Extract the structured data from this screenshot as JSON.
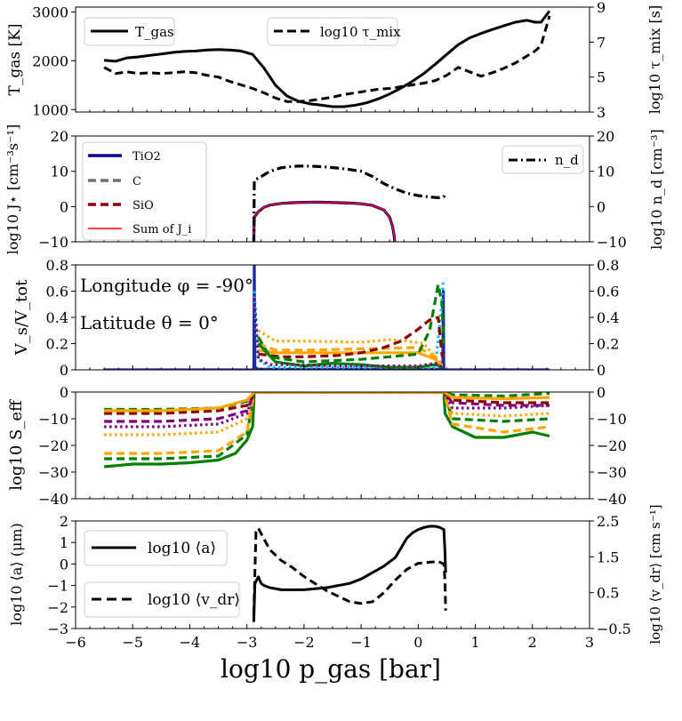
{
  "figure": {
    "shared_x": {
      "label": "log10 p_gas [bar]",
      "min": -6,
      "max": 3,
      "ticks": [
        -6,
        -5,
        -4,
        -3,
        -2,
        -1,
        0,
        1,
        2,
        3
      ]
    },
    "annotations": {
      "longitude": "Longitude φ = -90°",
      "latitude": "Latitude θ = 0°"
    }
  },
  "chart_data": [
    {
      "id": "temperature",
      "type": "line",
      "ylabel": "T_gas [K]",
      "ylim": [
        950,
        3100
      ],
      "yticks": [
        1000,
        2000,
        3000
      ],
      "y2label": "log10 τ_mix [s]",
      "y2lim": [
        3,
        9
      ],
      "y2ticks": [
        3,
        5,
        7,
        9
      ],
      "legend": [
        {
          "label": "T_gas",
          "style": "solid"
        },
        {
          "label": "log10 τ_mix",
          "style": "dashed"
        }
      ],
      "series": [
        {
          "name": "T_gas",
          "axis": "left",
          "style": "solid",
          "color": "#000000",
          "x": [
            -5.5,
            -5.3,
            -5.1,
            -4.9,
            -4.7,
            -4.5,
            -4.3,
            -4.1,
            -3.9,
            -3.7,
            -3.5,
            -3.3,
            -3.1,
            -2.9,
            -2.7,
            -2.5,
            -2.3,
            -2.1,
            -1.9,
            -1.7,
            -1.5,
            -1.3,
            -1.1,
            -0.9,
            -0.7,
            -0.5,
            -0.3,
            -0.1,
            0.1,
            0.3,
            0.5,
            0.7,
            0.9,
            1.1,
            1.3,
            1.5,
            1.7,
            1.9,
            2.05,
            2.15,
            2.3
          ],
          "y": [
            2010,
            1990,
            2060,
            2080,
            2110,
            2140,
            2170,
            2190,
            2200,
            2220,
            2230,
            2220,
            2200,
            2130,
            1850,
            1500,
            1280,
            1170,
            1120,
            1090,
            1060,
            1060,
            1090,
            1140,
            1220,
            1320,
            1440,
            1580,
            1740,
            1930,
            2130,
            2330,
            2470,
            2560,
            2640,
            2720,
            2790,
            2830,
            2790,
            2790,
            3020
          ]
        },
        {
          "name": "log10 τ_mix",
          "axis": "right",
          "style": "dashed",
          "color": "#000000",
          "x": [
            -5.5,
            -5.3,
            -5.1,
            -4.9,
            -4.7,
            -4.5,
            -4.3,
            -4.1,
            -3.9,
            -3.7,
            -3.5,
            -3.3,
            -3.1,
            -2.9,
            -2.7,
            -2.5,
            -2.3,
            -2.1,
            -1.9,
            -1.7,
            -1.5,
            -1.3,
            -1.1,
            -0.9,
            -0.7,
            -0.5,
            -0.3,
            -0.1,
            0.1,
            0.3,
            0.5,
            0.7,
            0.9,
            1.1,
            1.3,
            1.5,
            1.7,
            1.9,
            2.05,
            2.15,
            2.3
          ],
          "y": [
            5.55,
            5.2,
            5.3,
            5.2,
            5.25,
            5.2,
            5.25,
            5.3,
            5.25,
            5.1,
            5.0,
            4.75,
            4.55,
            4.35,
            4.1,
            3.8,
            3.6,
            3.6,
            3.65,
            3.75,
            3.85,
            4.0,
            4.1,
            4.2,
            4.3,
            4.35,
            4.45,
            4.55,
            4.65,
            4.8,
            5.1,
            5.55,
            5.3,
            5.05,
            5.25,
            5.5,
            5.8,
            6.2,
            6.5,
            6.8,
            8.5
          ]
        }
      ]
    },
    {
      "id": "nucleation",
      "type": "line",
      "ylabel": "log10 J⋆ [cm⁻³s⁻¹]",
      "ylim": [
        -10,
        20
      ],
      "yticks": [
        -10,
        0,
        10,
        20
      ],
      "y2label": "log10 n_d [cm⁻³]",
      "y2lim": [
        -10,
        20
      ],
      "y2ticks": [
        -10,
        0,
        10,
        20
      ],
      "legend": [
        {
          "label": "TiO2",
          "color": "#00008b"
        },
        {
          "label": "C",
          "color": "#707070"
        },
        {
          "label": "SiO",
          "color": "#8b0000"
        },
        {
          "label": "Sum of J_i",
          "color": "#ff0000"
        },
        {
          "label": "n_d",
          "style": "dashdot"
        }
      ],
      "series": [
        {
          "name": "TiO2",
          "color": "#00008b",
          "style": "solid",
          "x": [
            -2.88,
            -2.87,
            -2.8,
            -2.7,
            -2.6,
            -2.4,
            -2.2,
            -2.0,
            -1.8,
            -1.6,
            -1.4,
            -1.2,
            -1.0,
            -0.8,
            -0.6,
            -0.5,
            -0.45,
            -0.42,
            -0.41
          ],
          "y": [
            -10.5,
            -3.0,
            -1.5,
            -0.2,
            0.4,
            0.9,
            1.1,
            1.2,
            1.25,
            1.2,
            1.1,
            1.0,
            0.8,
            0.3,
            -1.0,
            -3.0,
            -5.5,
            -8.5,
            -10.5
          ]
        },
        {
          "name": "Sum of J_i",
          "color": "#ff0000",
          "style": "solid",
          "x": [
            -2.88,
            -2.87,
            -2.8,
            -2.7,
            -2.6,
            -2.4,
            -2.2,
            -2.0,
            -1.8,
            -1.6,
            -1.4,
            -1.2,
            -1.0,
            -0.8,
            -0.6,
            -0.5,
            -0.45,
            -0.42,
            -0.41
          ],
          "y": [
            -10.5,
            -3.0,
            -1.5,
            -0.2,
            0.4,
            0.9,
            1.1,
            1.2,
            1.25,
            1.2,
            1.1,
            1.0,
            0.8,
            0.3,
            -1.0,
            -3.0,
            -5.5,
            -8.5,
            -10.5
          ]
        },
        {
          "name": "n_d",
          "color": "#000000",
          "style": "dashdot",
          "x": [
            -2.88,
            -2.87,
            -2.75,
            -2.6,
            -2.4,
            -2.2,
            -2.0,
            -1.8,
            -1.6,
            -1.4,
            -1.2,
            -1.0,
            -0.8,
            -0.6,
            -0.4,
            -0.2,
            0.0,
            0.2,
            0.35,
            0.45,
            0.46
          ],
          "y": [
            -10.5,
            7.5,
            8.5,
            10.0,
            11.0,
            11.4,
            11.5,
            11.4,
            11.2,
            10.9,
            10.5,
            10.0,
            8.5,
            6.5,
            5.0,
            3.8,
            3.1,
            2.7,
            2.5,
            2.8,
            3.5
          ]
        }
      ]
    },
    {
      "id": "volume_fractions",
      "type": "line",
      "ylabel": "V_s/V_tot",
      "ylim": [
        0,
        0.8
      ],
      "yticks": [
        0.0,
        0.2,
        0.4,
        0.6,
        0.8
      ],
      "y2ticks": [
        0.0,
        0.2,
        0.4,
        0.6,
        0.8
      ],
      "series": [
        {
          "name": "TiO2",
          "color": "#1f2b9e",
          "style": "solid",
          "x": [
            -5.5,
            -2.88,
            -2.87,
            -2.86,
            -2.8,
            0.43,
            0.44,
            0.45,
            2.3
          ],
          "y": [
            0,
            0,
            0.82,
            0.02,
            0.005,
            0.005,
            0.6,
            0,
            0
          ]
        },
        {
          "name": "cyan species",
          "color": "#00bfff",
          "style": "dotted",
          "x": [
            -2.87,
            -2.8,
            -2.6,
            0.3,
            0.4,
            0.44
          ],
          "y": [
            0.6,
            0.08,
            0.02,
            0.02,
            0.45,
            0.68
          ]
        },
        {
          "name": "gold solid",
          "color": "#ffa500",
          "style": "solid",
          "x": [
            -2.8,
            -2.5,
            -2.0,
            -1.0,
            0.0,
            0.3,
            0.42
          ],
          "y": [
            0.15,
            0.13,
            0.13,
            0.13,
            0.13,
            0.08,
            0.02
          ]
        },
        {
          "name": "gold dotted",
          "color": "#ffa500",
          "style": "dotted",
          "x": [
            -2.8,
            -2.5,
            -2.0,
            -1.0,
            -0.5,
            -0.2,
            0.1,
            0.4
          ],
          "y": [
            0.3,
            0.22,
            0.22,
            0.21,
            0.23,
            0.22,
            0.2,
            0.05
          ]
        },
        {
          "name": "gold dashed",
          "color": "#ffa500",
          "style": "dashed",
          "x": [
            -2.8,
            -2.5,
            -2.0,
            -1.0,
            0.0,
            0.3,
            0.42
          ],
          "y": [
            0.2,
            0.15,
            0.15,
            0.16,
            0.17,
            0.1,
            0.03
          ]
        },
        {
          "name": "SiO",
          "color": "#8b0000",
          "style": "dashed",
          "x": [
            -2.8,
            -2.4,
            -2.0,
            -1.4,
            -1.0,
            -0.6,
            -0.3,
            0.0,
            0.2,
            0.35,
            0.42
          ],
          "y": [
            0.12,
            0.1,
            0.1,
            0.11,
            0.13,
            0.17,
            0.22,
            0.31,
            0.38,
            0.4,
            0.1
          ]
        },
        {
          "name": "green dashed",
          "color": "#007f00",
          "style": "dashed",
          "x": [
            -2.8,
            -2.6,
            -2.0,
            -1.0,
            -0.5,
            0.0,
            0.2,
            0.35,
            0.42,
            0.44
          ],
          "y": [
            0.25,
            0.1,
            0.06,
            0.08,
            0.1,
            0.12,
            0.3,
            0.65,
            0.5,
            0.2
          ]
        },
        {
          "name": "green solid",
          "color": "#007f00",
          "style": "solid",
          "x": [
            -2.8,
            -2.5,
            -2.0,
            -1.5,
            -1.0,
            -0.5,
            0.0,
            0.3,
            0.42
          ],
          "y": [
            0.2,
            0.06,
            0.03,
            0.05,
            0.04,
            0.02,
            0.02,
            0.04,
            0.02
          ]
        },
        {
          "name": "purple dotted",
          "color": "#800080",
          "style": "dotted",
          "x": [
            -2.87,
            -2.8,
            -2.6,
            -2.2,
            -1.5,
            -1.0,
            0.0,
            0.3,
            0.42
          ],
          "y": [
            0.55,
            0.08,
            0.04,
            0.04,
            0.03,
            0.03,
            0.03,
            0.05,
            0.02
          ]
        }
      ]
    },
    {
      "id": "supersaturation",
      "type": "line",
      "ylabel": "log10 S_eff",
      "ylim": [
        -40,
        0
      ],
      "yticks": [
        -40,
        -30,
        -20,
        -10,
        0
      ],
      "y2ticks": [
        -40,
        -30,
        -20,
        -10,
        0
      ],
      "series": [
        {
          "name": "green solid",
          "color": "#007f00",
          "style": "solid",
          "x": [
            -5.5,
            -5.0,
            -4.5,
            -4.0,
            -3.5,
            -3.2,
            -3.0,
            -2.9,
            -2.87,
            0.45,
            0.47,
            0.6,
            1.0,
            1.5,
            2.0,
            2.3
          ],
          "y": [
            -28,
            -27,
            -27,
            -26.5,
            -25.5,
            -23,
            -18,
            -13,
            0,
            0,
            -8,
            -13,
            -17,
            -17,
            -15,
            -16.5
          ]
        },
        {
          "name": "green dashed",
          "color": "#007f00",
          "style": "dashed",
          "x": [
            -5.5,
            -4.5,
            -3.5,
            -3.0,
            -2.87,
            0.45,
            0.6,
            1.5,
            2.3
          ],
          "y": [
            -25,
            -25,
            -24,
            -16,
            0,
            0,
            -10,
            -11,
            -10
          ]
        },
        {
          "name": "gold dashed",
          "color": "#ffa500",
          "style": "dashed",
          "x": [
            -5.5,
            -4.5,
            -3.5,
            -3.0,
            -2.87,
            0.45,
            0.6,
            1.5,
            2.3
          ],
          "y": [
            -23,
            -23,
            -22,
            -15,
            0,
            0,
            -12,
            -15,
            -13
          ]
        },
        {
          "name": "gold dotted",
          "color": "#ffa500",
          "style": "dotted",
          "x": [
            -5.5,
            -4.5,
            -3.5,
            -3.0,
            -2.87,
            0.45,
            0.6,
            1.5,
            2.3
          ],
          "y": [
            -16,
            -16,
            -15,
            -10,
            0,
            0,
            -8,
            -9,
            -8
          ]
        },
        {
          "name": "purple dotted",
          "color": "#800080",
          "style": "dotted",
          "x": [
            -5.5,
            -4.5,
            -3.5,
            -3.0,
            -2.87,
            0.45,
            0.6,
            1.5,
            2.3
          ],
          "y": [
            -13,
            -13,
            -12,
            -8,
            0,
            0,
            -6,
            -6,
            -5
          ]
        },
        {
          "name": "purple dashed",
          "color": "#800080",
          "style": "dashed",
          "x": [
            -5.5,
            -4.5,
            -3.5,
            -3.0,
            -2.87,
            0.45,
            0.6,
            1.5,
            2.3
          ],
          "y": [
            -11,
            -11,
            -10,
            -7,
            0,
            0,
            -4,
            -5,
            -5
          ]
        },
        {
          "name": "SiO",
          "color": "#8b0000",
          "style": "dashed",
          "x": [
            -5.5,
            -4.5,
            -3.5,
            -3.0,
            -2.87,
            0.45,
            0.6,
            1.5,
            2.3
          ],
          "y": [
            -8,
            -8,
            -7,
            -5,
            0,
            0,
            -3,
            -4,
            -4
          ]
        },
        {
          "name": "green dashed 2",
          "color": "#007f00",
          "style": "dashed",
          "x": [
            -5.5,
            -4.5,
            -3.5,
            -3.0,
            -2.87,
            0.45,
            0.6,
            1.5,
            2.3
          ],
          "y": [
            -6.5,
            -6.5,
            -6,
            -3.5,
            0,
            0,
            -1,
            -1.5,
            -0.5
          ]
        },
        {
          "name": "gold solid",
          "color": "#ffa500",
          "style": "solid",
          "x": [
            -5.5,
            -4.5,
            -3.5,
            -3.0,
            -2.87,
            0.45,
            0.6,
            1.5,
            2.3
          ],
          "y": [
            -7,
            -7,
            -6,
            -3,
            0,
            0,
            -2,
            -2.5,
            -2
          ]
        }
      ]
    },
    {
      "id": "grain_size",
      "type": "line",
      "ylabel": "log10 ⟨a⟩ (μm)",
      "ylim": [
        -3,
        2
      ],
      "yticks": [
        -3,
        -2,
        -1,
        0,
        1,
        2
      ],
      "y2label": "log10 ⟨v_dr⟩ [cm s⁻¹]",
      "y2lim": [
        -0.5,
        2.5
      ],
      "y2ticks": [
        -0.5,
        0.5,
        1.5,
        2.5
      ],
      "legend": [
        {
          "label": "log10 ⟨a⟩",
          "style": "solid"
        },
        {
          "label": "log10 ⟨v_dr⟩",
          "style": "dashed"
        }
      ],
      "series": [
        {
          "name": "log10 ⟨a⟩",
          "axis": "left",
          "style": "solid",
          "color": "#000000",
          "x": [
            -2.88,
            -2.86,
            -2.8,
            -2.75,
            -2.7,
            -2.6,
            -2.4,
            -2.0,
            -1.6,
            -1.2,
            -1.0,
            -0.8,
            -0.6,
            -0.4,
            -0.3,
            -0.2,
            -0.1,
            0.0,
            0.1,
            0.2,
            0.3,
            0.38,
            0.45,
            0.47,
            0.48
          ],
          "y": [
            -2.7,
            -0.9,
            -0.6,
            -0.9,
            -1.0,
            -1.1,
            -1.2,
            -1.2,
            -1.1,
            -0.9,
            -0.7,
            -0.4,
            -0.1,
            0.3,
            0.75,
            1.2,
            1.45,
            1.6,
            1.7,
            1.75,
            1.75,
            1.7,
            1.6,
            0.5,
            -0.4
          ]
        },
        {
          "name": "log10 ⟨v_dr⟩",
          "axis": "right",
          "style": "dashed",
          "color": "#000000",
          "x": [
            -2.88,
            -2.84,
            -2.8,
            -2.7,
            -2.6,
            -2.4,
            -2.2,
            -2.0,
            -1.8,
            -1.6,
            -1.4,
            -1.2,
            -1.0,
            -0.8,
            -0.6,
            -0.4,
            -0.2,
            0.0,
            0.2,
            0.35,
            0.45,
            0.47,
            0.48
          ],
          "y": [
            -0.1,
            2.2,
            2.3,
            2.0,
            1.7,
            1.4,
            1.2,
            0.95,
            0.75,
            0.55,
            0.4,
            0.25,
            0.2,
            0.25,
            0.5,
            0.85,
            1.15,
            1.32,
            1.35,
            1.37,
            1.3,
            0.8,
            0.0
          ]
        }
      ]
    }
  ]
}
